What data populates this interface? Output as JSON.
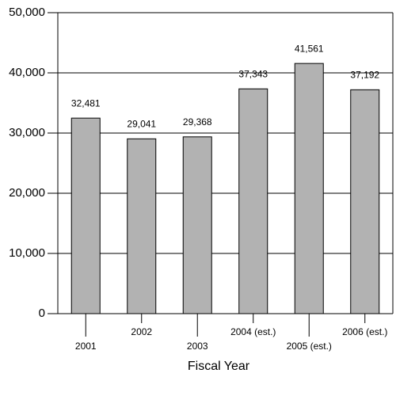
{
  "chart_data": {
    "type": "bar",
    "x_label": "Fiscal Year",
    "categories": [
      "2001",
      "2002",
      "2003",
      "2004 (est.)",
      "2005 (est.)",
      "2006 (est.)"
    ],
    "values": [
      32481,
      29041,
      29368,
      37343,
      41561,
      37192
    ],
    "value_labels": [
      "32,481",
      "29,041",
      "29,368",
      "37,343",
      "41,561",
      "37,192"
    ],
    "color": "#b2b2b2",
    "ylim": [
      0,
      50000
    ],
    "yticks": [
      0,
      {
        "value": 10000,
        "label": "10,000"
      },
      {
        "value": 20000,
        "label": "20,000"
      },
      {
        "value": 30000,
        "label": "30,000"
      },
      {
        "value": 40000,
        "label": "40,000"
      },
      {
        "value": 50000,
        "label": "50,000"
      }
    ],
    "grid": true
  }
}
